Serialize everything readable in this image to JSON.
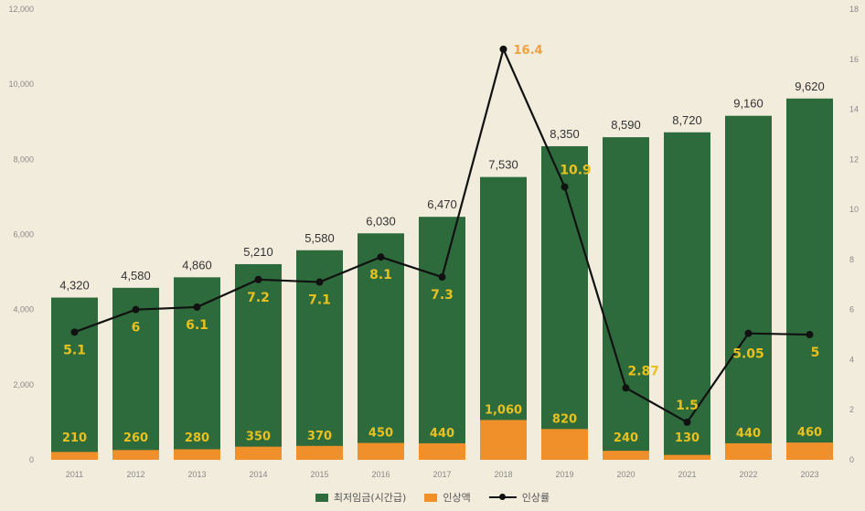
{
  "chart_data": {
    "type": "bar",
    "categories": [
      "2011",
      "2012",
      "2013",
      "2014",
      "2015",
      "2016",
      "2017",
      "2018",
      "2019",
      "2020",
      "2021",
      "2022",
      "2023"
    ],
    "series": [
      {
        "name": "최저임금(시간급)",
        "type": "bar",
        "color": "#2e6b3c",
        "axis": "left",
        "values": [
          4320,
          4580,
          4860,
          5210,
          5580,
          6030,
          6470,
          7530,
          8350,
          8590,
          8720,
          9160,
          9620
        ],
        "labels": [
          "4,320",
          "4,580",
          "4,860",
          "5,210",
          "5,580",
          "6,030",
          "6,470",
          "7,530",
          "8,350",
          "8,590",
          "8,720",
          "9,160",
          "9,620"
        ]
      },
      {
        "name": "인상액",
        "type": "bar",
        "color": "#f0902a",
        "axis": "left",
        "values": [
          210,
          260,
          280,
          350,
          370,
          450,
          440,
          1060,
          820,
          240,
          130,
          440,
          460
        ],
        "labels": [
          "210",
          "260",
          "280",
          "350",
          "370",
          "450",
          "440",
          "1,060",
          "820",
          "240",
          "130",
          "440",
          "460"
        ]
      },
      {
        "name": "인상률",
        "type": "line",
        "color": "#111111",
        "axis": "right",
        "values": [
          5.1,
          6,
          6.1,
          7.2,
          7.1,
          8.1,
          7.3,
          16.4,
          10.9,
          2.87,
          1.5,
          5.05,
          5
        ],
        "labels": [
          "5.1",
          "6",
          "6.1",
          "7.2",
          "7.1",
          "8.1",
          "7.3",
          "16.4",
          "10.9",
          "2.87",
          "1.5",
          "5.05",
          "5"
        ]
      }
    ],
    "y_left": {
      "ylim": [
        0,
        12000
      ],
      "ticks": [
        "0",
        "2,000",
        "4,000",
        "6,000",
        "8,000",
        "10,000",
        "12,000"
      ]
    },
    "y_right": {
      "ylim": [
        0,
        18
      ],
      "ticks": [
        "0",
        "2",
        "4",
        "6",
        "8",
        "10",
        "12",
        "14",
        "16",
        "18"
      ]
    },
    "grid": false,
    "legend_position": "bottom",
    "colors": {
      "background": "#f2ecdc",
      "bar_main": "#2e6b3c",
      "bar_increase": "#f0902a",
      "line": "#111111",
      "rate_label": "#e8c020",
      "peak_label": "#f0a040",
      "axis_text": "#888888",
      "total_label": "#333333"
    }
  }
}
